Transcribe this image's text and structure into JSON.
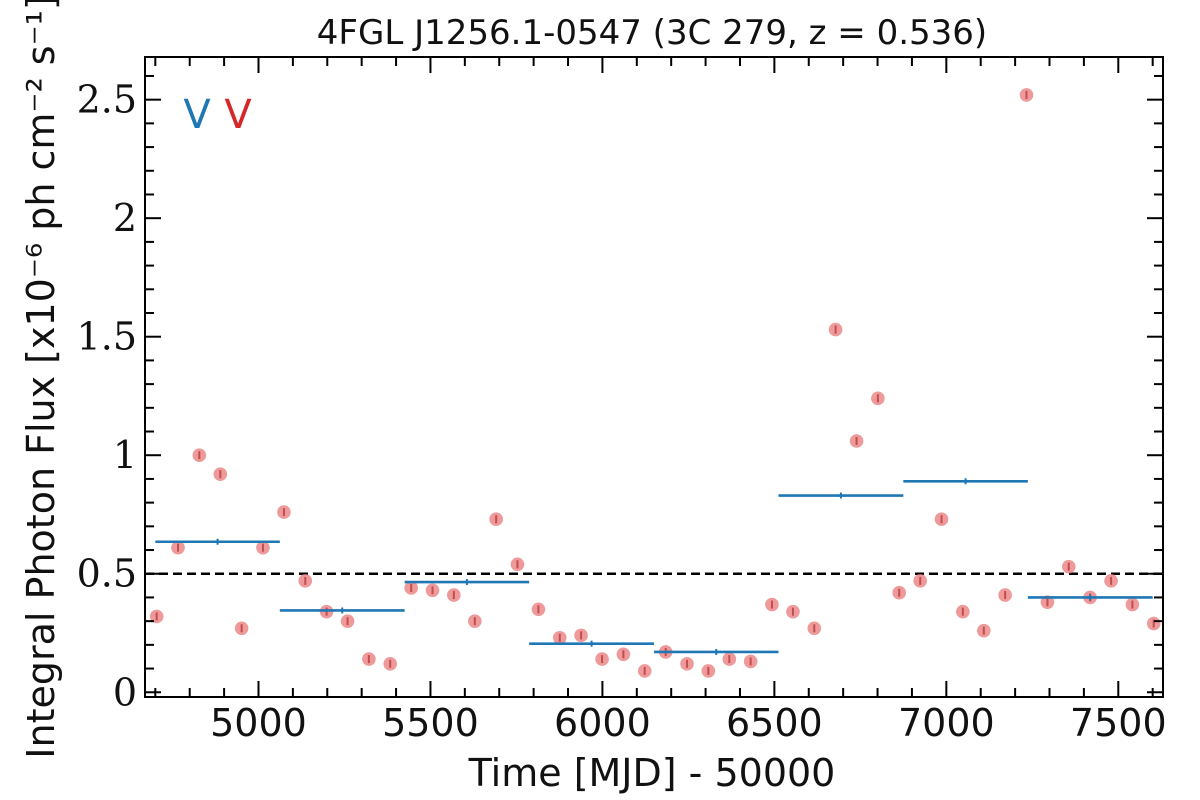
{
  "chart_data": {
    "type": "scatter",
    "title": "4FGL J1256.1-0547 (3C 279, z = 0.536)",
    "xlabel": "Time [MJD] - 50000",
    "ylabel": "Integral Photon Flux [x10⁻⁶ ph cm⁻² s⁻¹]",
    "xlim": [
      4670,
      7630
    ],
    "ylim": [
      -0.02,
      2.68
    ],
    "xticks": [
      5000,
      5500,
      6000,
      6500,
      7000,
      7500
    ],
    "xtick_labels": [
      "5000",
      "5500",
      "6000",
      "6500",
      "7000",
      "7500"
    ],
    "yticks": [
      0,
      0.5,
      1,
      1.5,
      2,
      2.5
    ],
    "ytick_labels": [
      "0",
      "0.5",
      "1",
      "1.5",
      "2",
      "2.5"
    ],
    "reference_line": {
      "y": 0.5,
      "style": "dashed",
      "color": "#000000"
    },
    "markers": [
      {
        "text": "V",
        "color": "#1f77b4"
      },
      {
        "text": "V",
        "color": "#d62728"
      }
    ],
    "series": [
      {
        "style": "points",
        "color": "#e8787a",
        "points": [
          {
            "x": 4704,
            "y": 0.32
          },
          {
            "x": 4766,
            "y": 0.61
          },
          {
            "x": 4828,
            "y": 1.0
          },
          {
            "x": 4889,
            "y": 0.92
          },
          {
            "x": 4951,
            "y": 0.27
          },
          {
            "x": 5013,
            "y": 0.61
          },
          {
            "x": 5074,
            "y": 0.76
          },
          {
            "x": 5136,
            "y": 0.47
          },
          {
            "x": 5198,
            "y": 0.34
          },
          {
            "x": 5259,
            "y": 0.3
          },
          {
            "x": 5321,
            "y": 0.14
          },
          {
            "x": 5383,
            "y": 0.12
          },
          {
            "x": 5444,
            "y": 0.44
          },
          {
            "x": 5506,
            "y": 0.43
          },
          {
            "x": 5568,
            "y": 0.41
          },
          {
            "x": 5629,
            "y": 0.3
          },
          {
            "x": 5691,
            "y": 0.73
          },
          {
            "x": 5753,
            "y": 0.54
          },
          {
            "x": 5814,
            "y": 0.35
          },
          {
            "x": 5876,
            "y": 0.23
          },
          {
            "x": 5938,
            "y": 0.24
          },
          {
            "x": 5999,
            "y": 0.14
          },
          {
            "x": 6061,
            "y": 0.16
          },
          {
            "x": 6123,
            "y": 0.09
          },
          {
            "x": 6184,
            "y": 0.17
          },
          {
            "x": 6246,
            "y": 0.12
          },
          {
            "x": 6308,
            "y": 0.09
          },
          {
            "x": 6369,
            "y": 0.14
          },
          {
            "x": 6431,
            "y": 0.13
          },
          {
            "x": 6493,
            "y": 0.37
          },
          {
            "x": 6554,
            "y": 0.34
          },
          {
            "x": 6616,
            "y": 0.27
          },
          {
            "x": 6678,
            "y": 1.53
          },
          {
            "x": 6739,
            "y": 1.06
          },
          {
            "x": 6801,
            "y": 1.24
          },
          {
            "x": 6863,
            "y": 0.42
          },
          {
            "x": 6924,
            "y": 0.47
          },
          {
            "x": 6986,
            "y": 0.73
          },
          {
            "x": 7048,
            "y": 0.34
          },
          {
            "x": 7109,
            "y": 0.26
          },
          {
            "x": 7171,
            "y": 0.41
          },
          {
            "x": 7233,
            "y": 2.52
          },
          {
            "x": 7294,
            "y": 0.38
          },
          {
            "x": 7356,
            "y": 0.53
          },
          {
            "x": 7418,
            "y": 0.4
          },
          {
            "x": 7479,
            "y": 0.47
          },
          {
            "x": 7541,
            "y": 0.37
          },
          {
            "x": 7603,
            "y": 0.29
          }
        ]
      },
      {
        "style": "segments",
        "color": "#1f77b4",
        "segments": [
          {
            "x0": 4700,
            "x1": 5062,
            "y": 0.635
          },
          {
            "x0": 5062,
            "x1": 5425,
            "y": 0.345
          },
          {
            "x0": 5425,
            "x1": 5787,
            "y": 0.465
          },
          {
            "x0": 5787,
            "x1": 6150,
            "y": 0.205
          },
          {
            "x0": 6150,
            "x1": 6512,
            "y": 0.17
          },
          {
            "x0": 6512,
            "x1": 6875,
            "y": 0.83
          },
          {
            "x0": 6875,
            "x1": 7237,
            "y": 0.89
          },
          {
            "x0": 7237,
            "x1": 7600,
            "y": 0.4
          }
        ]
      }
    ]
  }
}
